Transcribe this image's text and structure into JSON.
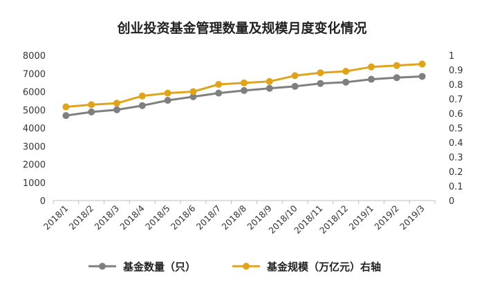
{
  "chart_data": {
    "type": "line",
    "title": "创业投资基金管理数量及规模月度变化情况",
    "categories": [
      "2018/1",
      "2018/2",
      "2018/3",
      "2018/4",
      "2018/5",
      "2018/6",
      "2018/7",
      "2018/8",
      "2018/9",
      "2018/10",
      "2018/11",
      "2018/12",
      "2019/1",
      "2019/2",
      "2019/3"
    ],
    "series": [
      {
        "name": "基金数量（只）",
        "axis": "left",
        "color": "#7f7f7f",
        "values": [
          4680,
          4880,
          5000,
          5230,
          5520,
          5720,
          5920,
          6060,
          6180,
          6290,
          6450,
          6520,
          6680,
          6770,
          6840
        ]
      },
      {
        "name": "基金规模（万亿元）右轴",
        "axis": "right",
        "color": "#e0a31c",
        "values": [
          0.645,
          0.66,
          0.67,
          0.72,
          0.74,
          0.75,
          0.8,
          0.81,
          0.82,
          0.86,
          0.88,
          0.89,
          0.92,
          0.93,
          0.94
        ]
      }
    ],
    "y_left": {
      "min": 0,
      "max": 8000,
      "step": 1000,
      "ticks": [
        "0",
        "1000",
        "2000",
        "3000",
        "4000",
        "5000",
        "6000",
        "7000",
        "8000"
      ]
    },
    "y_right": {
      "min": 0,
      "max": 1,
      "step": 0.1,
      "ticks": [
        "0",
        "0.1",
        "0.2",
        "0.3",
        "0.4",
        "0.5",
        "0.6",
        "0.7",
        "0.8",
        "0.9",
        "1"
      ]
    },
    "grid": false,
    "legend_position": "bottom"
  }
}
